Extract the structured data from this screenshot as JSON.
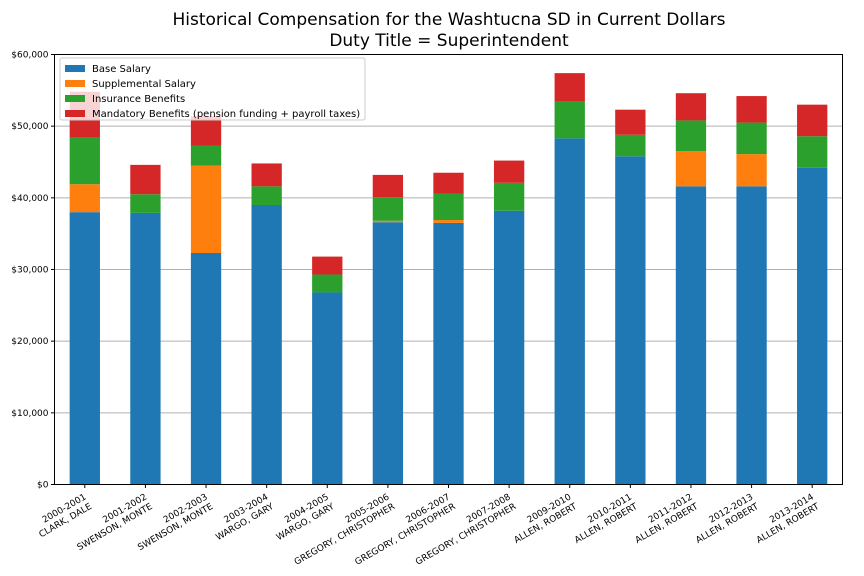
{
  "chart_data": {
    "type": "bar",
    "stacked": true,
    "title": [
      "Historical Compensation for the Washtucna SD in Current Dollars",
      "Duty Title = Superintendent"
    ],
    "xlabel": "",
    "ylabel": "",
    "ylim": [
      0,
      60000
    ],
    "yticks": [
      {
        "value": 0,
        "label": "$0"
      },
      {
        "value": 10000,
        "label": "$10,000"
      },
      {
        "value": 20000,
        "label": "$20,000"
      },
      {
        "value": 30000,
        "label": "$30,000"
      },
      {
        "value": 40000,
        "label": "$40,000"
      },
      {
        "value": 50000,
        "label": "$50,000"
      },
      {
        "value": 60000,
        "label": "$60,000"
      }
    ],
    "grid": "horizontal",
    "legend_position": "top-left",
    "categories": [
      [
        "2000-2001",
        "CLARK, DALE"
      ],
      [
        "2001-2002",
        "SWENSON, MONTE"
      ],
      [
        "2002-2003",
        "SWENSON, MONTE"
      ],
      [
        "2003-2004",
        "WARGO, GARY"
      ],
      [
        "2004-2005",
        "WARGO, GARY"
      ],
      [
        "2005-2006",
        "GREGORY, CHRISTOPHER"
      ],
      [
        "2006-2007",
        "GREGORY, CHRISTOPHER"
      ],
      [
        "2007-2008",
        "GREGORY, CHRISTOPHER"
      ],
      [
        "2009-2010",
        "ALLEN, ROBERT"
      ],
      [
        "2010-2011",
        "ALLEN, ROBERT"
      ],
      [
        "2011-2012",
        "ALLEN, ROBERT"
      ],
      [
        "2012-2013",
        "ALLEN, ROBERT"
      ],
      [
        "2013-2014",
        "ALLEN, ROBERT"
      ]
    ],
    "series": [
      {
        "name": "Base Salary",
        "color": "#1f77b4",
        "values": [
          38000,
          37900,
          32300,
          39000,
          26800,
          36600,
          36500,
          38200,
          48300,
          45800,
          41600,
          41600,
          44200
        ]
      },
      {
        "name": "Supplemental Salary",
        "color": "#ff7f0e",
        "values": [
          3900,
          0,
          12200,
          0,
          0,
          200,
          400,
          0,
          0,
          0,
          4900,
          4500,
          0
        ]
      },
      {
        "name": "Insurance Benefits",
        "color": "#2ca02c",
        "values": [
          6500,
          2600,
          2800,
          2600,
          2500,
          3300,
          3700,
          3900,
          5100,
          3000,
          4300,
          4400,
          4400
        ]
      },
      {
        "name": "Mandatory Benefits (pension funding + payroll taxes)",
        "color": "#d62728",
        "values": [
          6400,
          4100,
          4100,
          3200,
          2500,
          3100,
          2900,
          3100,
          4000,
          3500,
          3800,
          3700,
          4400
        ]
      }
    ]
  }
}
